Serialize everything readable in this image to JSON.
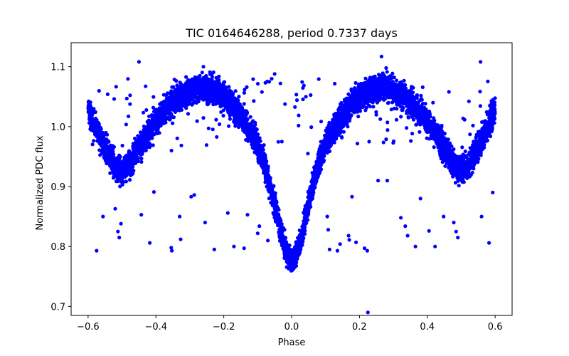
{
  "chart_data": {
    "type": "scatter",
    "title": "TIC 0164646288, period 0.7337 days",
    "xlabel": "Phase",
    "ylabel": "Normalized PDC flux",
    "xlim": [
      -0.65,
      0.65
    ],
    "ylim": [
      0.685,
      1.14
    ],
    "xticks": [
      -0.6,
      -0.4,
      -0.2,
      0.0,
      0.2,
      0.4,
      0.6
    ],
    "xtick_labels": [
      "−0.6",
      "−0.4",
      "−0.2",
      "0.0",
      "0.2",
      "0.4",
      "0.6"
    ],
    "yticks": [
      0.7,
      0.8,
      0.9,
      1.0,
      1.1
    ],
    "ytick_labels": [
      "0.7",
      "0.8",
      "0.9",
      "1.0",
      "1.1"
    ],
    "grid": false,
    "marker_color": "#0000ff",
    "series": [
      {
        "name": "PDC flux",
        "phase_range": [
          -0.6,
          0.6
        ],
        "curve_phase": [
          -0.6,
          -0.58,
          -0.55,
          -0.52,
          -0.5,
          -0.48,
          -0.45,
          -0.4,
          -0.35,
          -0.3,
          -0.27,
          -0.22,
          -0.18,
          -0.14,
          -0.1,
          -0.07,
          -0.05,
          -0.03,
          -0.015,
          0.0,
          0.015,
          0.03,
          0.05,
          0.07,
          0.1,
          0.14,
          0.18,
          0.22,
          0.27,
          0.3,
          0.35,
          0.4,
          0.45,
          0.48,
          0.5,
          0.52,
          0.55,
          0.58,
          0.6
        ],
        "curve_flux": [
          1.03,
          1.0,
          0.965,
          0.935,
          0.925,
          0.935,
          0.965,
          1.01,
          1.04,
          1.06,
          1.065,
          1.058,
          1.04,
          1.01,
          0.97,
          0.92,
          0.87,
          0.82,
          0.79,
          0.77,
          0.79,
          0.82,
          0.87,
          0.92,
          0.97,
          1.01,
          1.04,
          1.058,
          1.065,
          1.06,
          1.04,
          1.01,
          0.965,
          0.935,
          0.925,
          0.935,
          0.965,
          1.0,
          1.03
        ],
        "scatter_width": 0.022,
        "n_points": 6000,
        "outliers": [
          {
            "x": -0.575,
            "y": 0.793
          },
          {
            "x": -0.556,
            "y": 0.85
          },
          {
            "x": -0.52,
            "y": 0.863
          },
          {
            "x": -0.512,
            "y": 0.825
          },
          {
            "x": -0.508,
            "y": 0.815
          },
          {
            "x": -0.503,
            "y": 0.838
          },
          {
            "x": -0.45,
            "y": 1.108
          },
          {
            "x": -0.443,
            "y": 0.853
          },
          {
            "x": -0.418,
            "y": 0.806
          },
          {
            "x": -0.406,
            "y": 0.891
          },
          {
            "x": -0.355,
            "y": 0.798
          },
          {
            "x": -0.353,
            "y": 0.793
          },
          {
            "x": -0.33,
            "y": 0.85
          },
          {
            "x": -0.327,
            "y": 0.812
          },
          {
            "x": -0.296,
            "y": 0.883
          },
          {
            "x": -0.287,
            "y": 0.886
          },
          {
            "x": -0.255,
            "y": 0.84
          },
          {
            "x": -0.228,
            "y": 0.795
          },
          {
            "x": -0.188,
            "y": 0.856
          },
          {
            "x": -0.17,
            "y": 0.8
          },
          {
            "x": -0.14,
            "y": 0.797
          },
          {
            "x": -0.13,
            "y": 0.853
          },
          {
            "x": -0.1,
            "y": 0.822
          },
          {
            "x": -0.095,
            "y": 0.834
          },
          {
            "x": -0.07,
            "y": 0.81
          },
          {
            "x": -0.05,
            "y": 1.088
          },
          {
            "x": -0.033,
            "y": 1.072
          },
          {
            "x": 0.048,
            "y": 0.955
          },
          {
            "x": 0.105,
            "y": 0.85
          },
          {
            "x": 0.108,
            "y": 0.828
          },
          {
            "x": 0.112,
            "y": 0.795
          },
          {
            "x": 0.135,
            "y": 0.793
          },
          {
            "x": 0.143,
            "y": 0.804
          },
          {
            "x": 0.168,
            "y": 0.818
          },
          {
            "x": 0.17,
            "y": 0.811
          },
          {
            "x": 0.178,
            "y": 0.883
          },
          {
            "x": 0.19,
            "y": 0.807
          },
          {
            "x": 0.215,
            "y": 0.797
          },
          {
            "x": 0.223,
            "y": 0.793
          },
          {
            "x": 0.225,
            "y": 0.69
          },
          {
            "x": 0.255,
            "y": 0.91
          },
          {
            "x": 0.282,
            "y": 0.91
          },
          {
            "x": 0.322,
            "y": 0.848
          },
          {
            "x": 0.335,
            "y": 0.834
          },
          {
            "x": 0.342,
            "y": 0.818
          },
          {
            "x": 0.365,
            "y": 0.8
          },
          {
            "x": 0.38,
            "y": 0.88
          },
          {
            "x": 0.405,
            "y": 0.826
          },
          {
            "x": 0.423,
            "y": 0.8
          },
          {
            "x": 0.448,
            "y": 0.85
          },
          {
            "x": 0.478,
            "y": 0.84
          },
          {
            "x": 0.485,
            "y": 0.825
          },
          {
            "x": 0.49,
            "y": 0.815
          },
          {
            "x": 0.56,
            "y": 0.85
          },
          {
            "x": 0.582,
            "y": 0.806
          },
          {
            "x": 0.593,
            "y": 0.89
          },
          {
            "x": 0.557,
            "y": 1.108
          },
          {
            "x": 0.265,
            "y": 1.117
          },
          {
            "x": -0.26,
            "y": 1.1
          }
        ]
      }
    ]
  }
}
